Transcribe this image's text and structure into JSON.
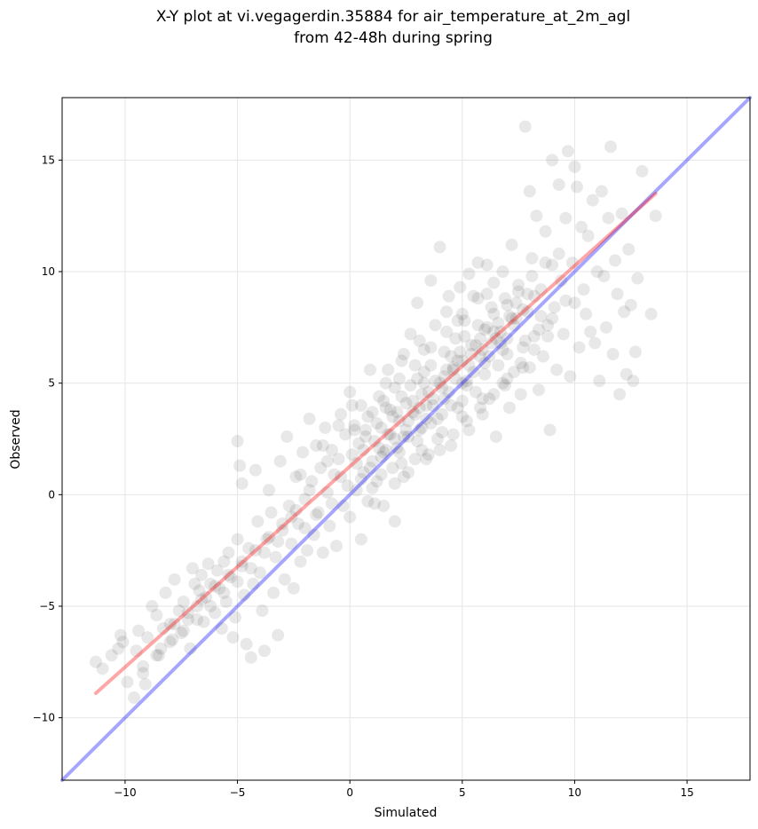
{
  "chart_data": {
    "type": "scatter",
    "title_line1": "X-Y plot at vi.vegagerdin.35884 for air_temperature_at_2m_agl",
    "title_line2": "from 42-48h during spring",
    "xlabel": "Simulated",
    "ylabel": "Observed",
    "xlim": [
      -12.8,
      17.8
    ],
    "ylim": [
      -12.8,
      17.8
    ],
    "xticks": [
      -10,
      -5,
      0,
      5,
      10,
      15
    ],
    "yticks": [
      -10,
      -5,
      0,
      5,
      10,
      15
    ],
    "xtick_labels": [
      "−10",
      "−5",
      "0",
      "5",
      "10",
      "15"
    ],
    "ytick_labels": [
      "−10",
      "−5",
      "0",
      "5",
      "10",
      "15"
    ],
    "grid": true,
    "point_color": "#000000",
    "regression_line": {
      "color": "#ff0000",
      "x": [
        -11.3,
        13.6
      ],
      "y": [
        -8.9,
        13.5
      ]
    },
    "identity_line": {
      "color": "#0000ff",
      "x": [
        -12.8,
        17.8
      ],
      "y": [
        -12.8,
        17.8
      ]
    },
    "points": [
      [
        -11.3,
        -7.5
      ],
      [
        -11.0,
        -7.8
      ],
      [
        -10.6,
        -7.2
      ],
      [
        -10.3,
        -6.9
      ],
      [
        -10.2,
        -6.3
      ],
      [
        -10.1,
        -6.6
      ],
      [
        -9.9,
        -8.4
      ],
      [
        -9.6,
        -9.1
      ],
      [
        -9.5,
        -7.0
      ],
      [
        -9.4,
        -6.1
      ],
      [
        -9.2,
        -8.0
      ],
      [
        -9.1,
        -8.5
      ],
      [
        -9.0,
        -6.4
      ],
      [
        -8.8,
        -5.0
      ],
      [
        -8.6,
        -5.4
      ],
      [
        -8.5,
        -7.2
      ],
      [
        -8.4,
        -6.9
      ],
      [
        -8.3,
        -6.0
      ],
      [
        -8.2,
        -4.4
      ],
      [
        -8.0,
        -5.8
      ],
      [
        -7.9,
        -6.5
      ],
      [
        -7.8,
        -3.8
      ],
      [
        -7.6,
        -5.2
      ],
      [
        -7.5,
        -6.2
      ],
      [
        -7.4,
        -4.8
      ],
      [
        -7.2,
        -5.6
      ],
      [
        -7.1,
        -6.9
      ],
      [
        -7.0,
        -3.3
      ],
      [
        -6.9,
        -4.0
      ],
      [
        -6.8,
        -5.0
      ],
      [
        -6.7,
        -4.3
      ],
      [
        -6.6,
        -3.6
      ],
      [
        -6.5,
        -5.7
      ],
      [
        -6.4,
        -4.6
      ],
      [
        -6.3,
        -3.1
      ],
      [
        -6.2,
        -4.0
      ],
      [
        -6.0,
        -5.3
      ],
      [
        -5.9,
        -3.4
      ],
      [
        -5.8,
        -4.2
      ],
      [
        -5.7,
        -6.0
      ],
      [
        -5.6,
        -3.0
      ],
      [
        -5.5,
        -4.8
      ],
      [
        -5.4,
        -2.6
      ],
      [
        -5.3,
        -3.7
      ],
      [
        -5.2,
        -6.4
      ],
      [
        -5.1,
        -5.5
      ],
      [
        -5.0,
        2.4
      ],
      [
        -5.0,
        -2.0
      ],
      [
        -4.9,
        1.3
      ],
      [
        -4.8,
        0.5
      ],
      [
        -4.8,
        -3.2
      ],
      [
        -4.7,
        -4.5
      ],
      [
        -4.6,
        -6.7
      ],
      [
        -4.5,
        -2.4
      ],
      [
        -4.4,
        -7.3
      ],
      [
        -4.3,
        -4.0
      ],
      [
        -4.2,
        1.1
      ],
      [
        -4.1,
        -1.2
      ],
      [
        -4.0,
        -3.5
      ],
      [
        -3.9,
        -5.2
      ],
      [
        -3.8,
        -7.0
      ],
      [
        -3.7,
        -2.0
      ],
      [
        -3.6,
        0.2
      ],
      [
        -3.5,
        -0.8
      ],
      [
        -3.4,
        -4.4
      ],
      [
        -3.3,
        -2.8
      ],
      [
        -3.2,
        -6.3
      ],
      [
        -3.1,
        1.5
      ],
      [
        -3.0,
        -1.6
      ],
      [
        -2.9,
        -3.8
      ],
      [
        -2.8,
        2.6
      ],
      [
        -2.7,
        -0.5
      ],
      [
        -2.6,
        -2.2
      ],
      [
        -2.5,
        -4.2
      ],
      [
        -2.4,
        0.8
      ],
      [
        -2.3,
        -1.3
      ],
      [
        -2.2,
        -3.0
      ],
      [
        -2.1,
        1.9
      ],
      [
        -2.0,
        -0.2
      ],
      [
        -1.9,
        -2.5
      ],
      [
        -1.8,
        3.4
      ],
      [
        -1.7,
        0.6
      ],
      [
        -1.6,
        -1.8
      ],
      [
        -1.5,
        2.2
      ],
      [
        -1.4,
        -0.8
      ],
      [
        -1.3,
        1.2
      ],
      [
        -1.2,
        -2.6
      ],
      [
        -1.1,
        3.0
      ],
      [
        -1.0,
        0.1
      ],
      [
        -0.9,
        -1.4
      ],
      [
        -0.8,
        2.0
      ],
      [
        -0.7,
        0.9
      ],
      [
        -0.6,
        -2.3
      ],
      [
        -0.5,
        1.6
      ],
      [
        -0.4,
        3.6
      ],
      [
        -0.3,
        -0.5
      ],
      [
        -0.2,
        2.7
      ],
      [
        -0.1,
        0.4
      ],
      [
        0.0,
        4.6
      ],
      [
        0.0,
        -1.0
      ],
      [
        0.1,
        1.8
      ],
      [
        0.2,
        3.1
      ],
      [
        0.3,
        0.2
      ],
      [
        0.4,
        2.3
      ],
      [
        0.5,
        -2.0
      ],
      [
        0.5,
        4.0
      ],
      [
        0.6,
        1.0
      ],
      [
        0.7,
        2.9
      ],
      [
        0.8,
        -0.3
      ],
      [
        0.9,
        5.6
      ],
      [
        1.0,
        3.7
      ],
      [
        1.0,
        1.5
      ],
      [
        1.1,
        2.4
      ],
      [
        1.2,
        0.6
      ],
      [
        1.3,
        4.4
      ],
      [
        1.4,
        3.0
      ],
      [
        1.5,
        -0.5
      ],
      [
        1.5,
        1.9
      ],
      [
        1.6,
        5.0
      ],
      [
        1.7,
        2.7
      ],
      [
        1.8,
        3.8
      ],
      [
        1.9,
        1.2
      ],
      [
        2.0,
        4.8
      ],
      [
        2.0,
        -1.2
      ],
      [
        2.1,
        2.1
      ],
      [
        2.2,
        3.3
      ],
      [
        2.3,
        6.0
      ],
      [
        2.4,
        0.8
      ],
      [
        2.5,
        4.1
      ],
      [
        2.6,
        2.6
      ],
      [
        2.7,
        7.2
      ],
      [
        2.8,
        3.7
      ],
      [
        2.9,
        1.6
      ],
      [
        3.0,
        5.2
      ],
      [
        3.0,
        8.6
      ],
      [
        3.1,
        2.9
      ],
      [
        3.2,
        4.5
      ],
      [
        3.3,
        6.5
      ],
      [
        3.4,
        3.4
      ],
      [
        3.5,
        1.8
      ],
      [
        3.6,
        5.8
      ],
      [
        3.7,
        4.0
      ],
      [
        3.8,
        7.6
      ],
      [
        3.9,
        2.5
      ],
      [
        4.0,
        5.0
      ],
      [
        4.0,
        11.1
      ],
      [
        4.1,
        3.6
      ],
      [
        4.2,
        6.4
      ],
      [
        4.3,
        8.2
      ],
      [
        4.4,
        4.6
      ],
      [
        4.5,
        2.2
      ],
      [
        4.6,
        5.6
      ],
      [
        4.7,
        7.0
      ],
      [
        4.8,
        3.9
      ],
      [
        4.9,
        9.3
      ],
      [
        5.0,
        6.0
      ],
      [
        5.0,
        4.2
      ],
      [
        5.1,
        7.8
      ],
      [
        5.2,
        5.1
      ],
      [
        5.3,
        2.9
      ],
      [
        5.4,
        6.7
      ],
      [
        5.5,
        8.9
      ],
      [
        5.6,
        4.6
      ],
      [
        5.7,
        10.4
      ],
      [
        5.8,
        6.2
      ],
      [
        5.9,
        3.6
      ],
      [
        6.0,
        7.4
      ],
      [
        6.0,
        5.4
      ],
      [
        6.1,
        9.0
      ],
      [
        6.2,
        4.3
      ],
      [
        6.3,
        6.8
      ],
      [
        6.4,
        8.1
      ],
      [
        6.5,
        2.6
      ],
      [
        6.6,
        5.8
      ],
      [
        6.7,
        7.3
      ],
      [
        6.8,
        10.0
      ],
      [
        6.9,
        4.9
      ],
      [
        7.0,
        6.3
      ],
      [
        7.0,
        8.5
      ],
      [
        7.1,
        3.9
      ],
      [
        7.2,
        11.2
      ],
      [
        7.3,
        5.5
      ],
      [
        7.4,
        7.9
      ],
      [
        7.5,
        9.4
      ],
      [
        7.6,
        4.5
      ],
      [
        7.7,
        6.6
      ],
      [
        7.8,
        16.5
      ],
      [
        7.9,
        8.2
      ],
      [
        8.0,
        13.6
      ],
      [
        8.0,
        5.7
      ],
      [
        8.1,
        10.6
      ],
      [
        8.2,
        7.1
      ],
      [
        8.3,
        12.5
      ],
      [
        8.4,
        4.7
      ],
      [
        8.5,
        9.2
      ],
      [
        8.6,
        6.2
      ],
      [
        8.7,
        11.8
      ],
      [
        8.8,
        7.6
      ],
      [
        8.9,
        2.9
      ],
      [
        9.0,
        10.3
      ],
      [
        9.0,
        15.0
      ],
      [
        9.1,
        8.4
      ],
      [
        9.2,
        5.6
      ],
      [
        9.3,
        13.9
      ],
      [
        9.4,
        9.6
      ],
      [
        9.5,
        7.2
      ],
      [
        9.6,
        12.4
      ],
      [
        9.7,
        15.4
      ],
      [
        9.8,
        5.3
      ],
      [
        9.9,
        10.4
      ],
      [
        10.0,
        14.7
      ],
      [
        10.0,
        8.6
      ],
      [
        10.1,
        13.8
      ],
      [
        10.2,
        6.6
      ],
      [
        10.3,
        12.0
      ],
      [
        10.4,
        9.2
      ],
      [
        10.5,
        8.1
      ],
      [
        10.6,
        11.6
      ],
      [
        10.7,
        7.3
      ],
      [
        10.8,
        13.2
      ],
      [
        10.9,
        6.8
      ],
      [
        11.0,
        10.0
      ],
      [
        11.1,
        5.1
      ],
      [
        11.2,
        13.6
      ],
      [
        11.3,
        9.8
      ],
      [
        11.4,
        7.5
      ],
      [
        11.5,
        12.4
      ],
      [
        11.6,
        15.6
      ],
      [
        11.7,
        6.3
      ],
      [
        11.8,
        10.5
      ],
      [
        11.9,
        9.0
      ],
      [
        12.0,
        4.5
      ],
      [
        12.1,
        12.6
      ],
      [
        12.2,
        8.2
      ],
      [
        12.3,
        5.4
      ],
      [
        12.4,
        11.0
      ],
      [
        12.5,
        8.5
      ],
      [
        12.6,
        5.1
      ],
      [
        12.7,
        6.4
      ],
      [
        12.8,
        9.7
      ],
      [
        13.0,
        14.5
      ],
      [
        13.4,
        8.1
      ],
      [
        13.6,
        12.5
      ],
      [
        1.2,
        3.2
      ],
      [
        1.6,
        2.0
      ],
      [
        2.1,
        3.7
      ],
      [
        2.4,
        2.6
      ],
      [
        2.8,
        4.2
      ],
      [
        3.2,
        3.0
      ],
      [
        3.5,
        4.6
      ],
      [
        3.9,
        3.4
      ],
      [
        4.2,
        5.3
      ],
      [
        4.5,
        4.0
      ],
      [
        4.8,
        6.0
      ],
      [
        5.2,
        4.9
      ],
      [
        5.6,
        6.7
      ],
      [
        6.0,
        5.9
      ],
      [
        6.4,
        7.3
      ],
      [
        6.8,
        6.5
      ],
      [
        7.2,
        7.9
      ],
      [
        0.6,
        2.0
      ],
      [
        0.9,
        1.2
      ],
      [
        1.8,
        2.7
      ],
      [
        2.2,
        1.9
      ],
      [
        2.6,
        3.3
      ],
      [
        3.0,
        2.4
      ],
      [
        3.4,
        4.0
      ],
      [
        3.8,
        5.1
      ],
      [
        4.2,
        4.3
      ],
      [
        4.6,
        5.7
      ],
      [
        5.0,
        5.0
      ],
      [
        5.4,
        6.3
      ],
      [
        5.8,
        7.0
      ],
      [
        6.2,
        6.2
      ],
      [
        6.6,
        7.7
      ],
      [
        7.0,
        7.0
      ],
      [
        7.4,
        8.6
      ],
      [
        1.0,
        0.3
      ],
      [
        1.4,
        1.7
      ],
      [
        2.0,
        2.5
      ],
      [
        2.5,
        2.9
      ],
      [
        3.1,
        3.9
      ],
      [
        3.6,
        3.2
      ],
      [
        4.1,
        4.8
      ],
      [
        4.7,
        5.2
      ],
      [
        5.3,
        5.8
      ],
      [
        5.9,
        6.5
      ],
      [
        6.5,
        7.0
      ],
      [
        7.1,
        8.0
      ],
      [
        7.7,
        8.3
      ],
      [
        8.2,
        8.9
      ],
      [
        0.3,
        1.4
      ],
      [
        0.7,
        2.6
      ],
      [
        1.3,
        2.1
      ],
      [
        1.9,
        3.5
      ],
      [
        2.3,
        4.4
      ],
      [
        2.9,
        3.6
      ],
      [
        3.3,
        5.0
      ],
      [
        3.7,
        4.3
      ],
      [
        4.3,
        5.6
      ],
      [
        4.9,
        6.4
      ],
      [
        5.5,
        5.5
      ],
      [
        6.1,
        7.5
      ],
      [
        6.7,
        6.8
      ],
      [
        7.3,
        7.6
      ],
      [
        7.9,
        9.0
      ],
      [
        8.5,
        8.0
      ],
      [
        -0.4,
        0.8
      ],
      [
        -0.8,
        -0.4
      ],
      [
        -1.5,
        -0.9
      ],
      [
        -2.0,
        -1.5
      ],
      [
        -2.6,
        -1.0
      ],
      [
        -3.2,
        -2.1
      ],
      [
        -3.8,
        -2.6
      ],
      [
        -4.4,
        -3.3
      ],
      [
        -5.0,
        -3.9
      ],
      [
        -5.6,
        -4.4
      ],
      [
        -6.2,
        -5.0
      ],
      [
        -6.8,
        -5.6
      ],
      [
        -7.4,
        -6.1
      ],
      [
        -8.0,
        -6.6
      ],
      [
        -8.6,
        -7.2
      ],
      [
        -9.2,
        -7.7
      ],
      [
        -1.0,
        1.5
      ],
      [
        -1.8,
        0.2
      ],
      [
        -2.4,
        -0.7
      ],
      [
        -3.0,
        -1.3
      ],
      [
        -3.6,
        -1.9
      ],
      [
        -4.2,
        -2.5
      ],
      [
        -4.8,
        -3.0
      ],
      [
        -5.4,
        -3.6
      ],
      [
        -6.0,
        -4.1
      ],
      [
        -6.6,
        -4.7
      ],
      [
        -7.2,
        -5.3
      ],
      [
        -7.8,
        -5.8
      ],
      [
        0.2,
        2.9
      ],
      [
        0.8,
        3.5
      ],
      [
        1.5,
        4.2
      ],
      [
        2.2,
        5.2
      ],
      [
        2.9,
        5.8
      ],
      [
        3.6,
        6.6
      ],
      [
        4.3,
        7.3
      ],
      [
        5.0,
        8.1
      ],
      [
        5.7,
        8.8
      ],
      [
        6.4,
        9.5
      ],
      [
        3.4,
        1.6
      ],
      [
        4.0,
        2.0
      ],
      [
        4.6,
        2.7
      ],
      [
        5.2,
        3.3
      ],
      [
        5.8,
        3.9
      ],
      [
        6.4,
        4.5
      ],
      [
        7.0,
        5.2
      ],
      [
        7.6,
        5.9
      ],
      [
        8.2,
        6.5
      ],
      [
        8.8,
        7.1
      ],
      [
        2.0,
        0.5
      ],
      [
        2.6,
        1.0
      ],
      [
        1.1,
        -0.4
      ],
      [
        0.5,
        0.7
      ],
      [
        4.4,
        8.9
      ],
      [
        3.6,
        9.6
      ],
      [
        5.3,
        9.9
      ],
      [
        6.1,
        10.3
      ],
      [
        4.8,
        7.8
      ],
      [
        3.1,
        6.9
      ],
      [
        2.4,
        6.3
      ],
      [
        1.7,
        5.6
      ],
      [
        0.1,
        4.0
      ],
      [
        -0.5,
        3.1
      ],
      [
        -1.2,
        2.2
      ],
      [
        -2.2,
        0.9
      ],
      [
        1.6,
        3.9
      ],
      [
        2.7,
        4.9
      ],
      [
        3.3,
        5.5
      ],
      [
        4.5,
        6.2
      ],
      [
        5.1,
        7.1
      ],
      [
        5.7,
        7.6
      ],
      [
        6.3,
        8.4
      ],
      [
        6.9,
        8.8
      ],
      [
        7.5,
        9.1
      ],
      [
        8.1,
        9.8
      ],
      [
        8.7,
        10.4
      ],
      [
        9.3,
        10.8
      ],
      [
        7.8,
        6.9
      ],
      [
        8.4,
        7.4
      ],
      [
        9.0,
        7.9
      ],
      [
        9.6,
        8.7
      ],
      [
        1.4,
        0.9
      ],
      [
        2.3,
        1.4
      ],
      [
        3.2,
        2.0
      ],
      [
        4.1,
        2.8
      ],
      [
        5.0,
        3.5
      ],
      [
        5.9,
        4.3
      ],
      [
        6.8,
        5.0
      ],
      [
        7.7,
        5.7
      ]
    ]
  }
}
